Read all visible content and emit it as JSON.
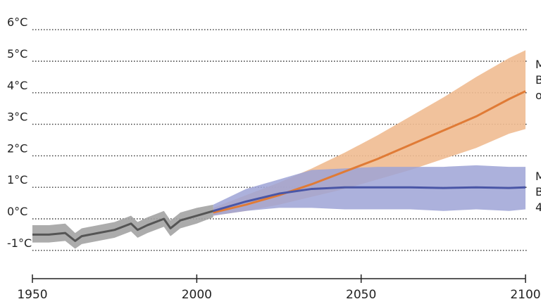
{
  "chart_data": {
    "type": "line",
    "xlim": [
      1950,
      2100
    ],
    "ylim": [
      -1,
      6
    ],
    "x_ticks": [
      "1950",
      "2000",
      "2050",
      "2100"
    ],
    "y_ticks": [
      "-1°C",
      "0°C",
      "1°C",
      "2°C",
      "3°C",
      "4°C",
      "5°C",
      "6°C"
    ],
    "grid": "horizontal dotted",
    "colors": {
      "historical": "#555555",
      "historical_band": "#a3a3a3",
      "high": "#e07b36",
      "high_band": "#f0bb91",
      "low": "#4a56a6",
      "low_band": "#9ea3d6"
    },
    "series": [
      {
        "key": "historical",
        "x": [
          1950,
          1955,
          1960,
          1963,
          1965,
          1970,
          1975,
          1980,
          1982,
          1985,
          1990,
          1992,
          1995,
          2000,
          2005
        ],
        "values": [
          -0.5,
          -0.5,
          -0.45,
          -0.7,
          -0.55,
          -0.45,
          -0.35,
          -0.15,
          -0.35,
          -0.2,
          0.0,
          -0.3,
          -0.05,
          0.1,
          0.25
        ],
        "band_low": [
          -0.75,
          -0.75,
          -0.7,
          -0.95,
          -0.8,
          -0.7,
          -0.6,
          -0.4,
          -0.6,
          -0.45,
          -0.25,
          -0.55,
          -0.3,
          -0.15,
          0.05
        ],
        "band_high": [
          -0.2,
          -0.2,
          -0.15,
          -0.45,
          -0.3,
          -0.2,
          -0.1,
          0.1,
          -0.1,
          0.05,
          0.25,
          -0.05,
          0.2,
          0.35,
          0.45
        ]
      },
      {
        "key": "high",
        "x": [
          2005,
          2015,
          2025,
          2035,
          2045,
          2055,
          2065,
          2075,
          2085,
          2095,
          2100
        ],
        "values": [
          0.2,
          0.45,
          0.75,
          1.1,
          1.5,
          1.9,
          2.35,
          2.8,
          3.25,
          3.8,
          4.05
        ],
        "band_low": [
          0.1,
          0.25,
          0.45,
          0.7,
          0.95,
          1.25,
          1.55,
          1.9,
          2.25,
          2.7,
          2.85
        ],
        "band_high": [
          0.35,
          0.75,
          1.15,
          1.6,
          2.1,
          2.65,
          3.25,
          3.85,
          4.5,
          5.1,
          5.35
        ]
      },
      {
        "key": "low",
        "x": [
          2005,
          2015,
          2025,
          2035,
          2045,
          2055,
          2065,
          2075,
          2085,
          2095,
          2100
        ],
        "values": [
          0.25,
          0.55,
          0.8,
          0.95,
          1.0,
          1.0,
          1.0,
          0.98,
          1.0,
          0.98,
          1.0
        ],
        "band_low": [
          0.1,
          0.25,
          0.35,
          0.35,
          0.3,
          0.3,
          0.3,
          0.25,
          0.3,
          0.25,
          0.3
        ],
        "band_high": [
          0.45,
          0.95,
          1.25,
          1.55,
          1.6,
          1.65,
          1.65,
          1.65,
          1.7,
          1.65,
          1.65
        ]
      }
    ],
    "annotations": [
      {
        "lines": [
          "M",
          "B",
          "o"
        ],
        "near": "high"
      },
      {
        "lines": [
          "M",
          "B",
          "4"
        ],
        "near": "low"
      }
    ]
  }
}
